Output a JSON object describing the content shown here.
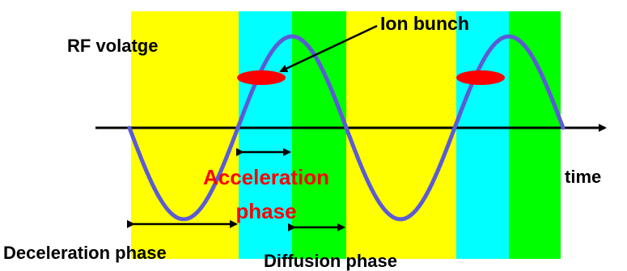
{
  "labels": {
    "rf_voltage": "RF volatge",
    "ion_bunch": "Ion bunch",
    "acceleration_line1": "Acceleration",
    "acceleration_line2": "phase",
    "time": "time",
    "deceleration": "Deceleration phase",
    "diffusion": "Diffusion phase"
  },
  "colors": {
    "deceleration_band": "#FFFF00",
    "acceleration_band": "#00FFFF",
    "diffusion_band": "#00FF00",
    "wave": "#5B5BD6",
    "ion_bunch": "#FF0000",
    "acceleration_text": "#FF0000",
    "axis": "#000000"
  }
}
